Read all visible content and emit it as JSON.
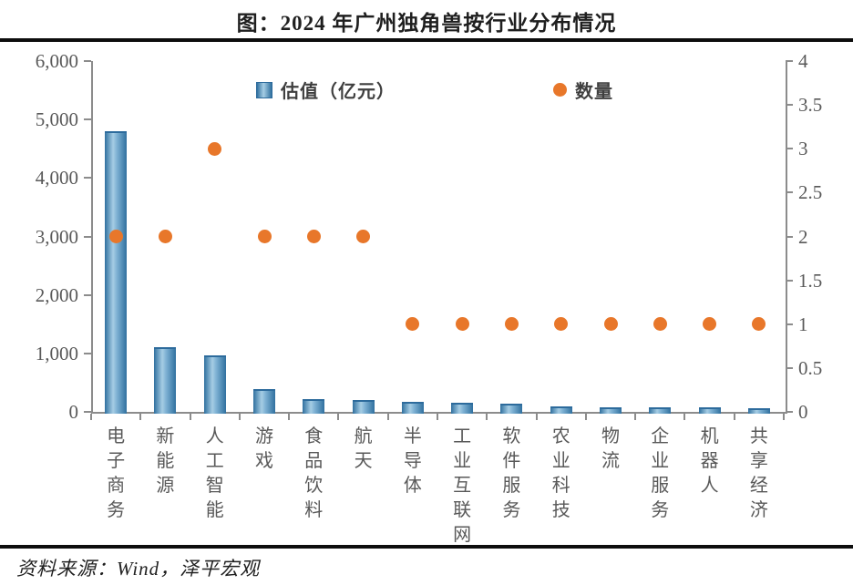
{
  "title": "图：2024 年广州独角兽按行业分布情况",
  "source": "资料来源：Wind，泽平宏观",
  "legend": {
    "bar_label": "估值（亿元）",
    "dot_label": "数量"
  },
  "colors": {
    "bar_fill_center": "#a6cde4",
    "bar_fill_edge": "#30709f",
    "dot_fill": "#e8772a",
    "axis_text": "#595959",
    "axis_line": "#8c8c8c",
    "divider": "#0d0d0d",
    "title_text": "#1f1f1f"
  },
  "chart_data": {
    "type": "bar",
    "subtype": "dual-axis bar + scatter",
    "title": "图：2024 年广州独角兽按行业分布情况",
    "categories": [
      "电子商务",
      "新能源",
      "人工智能",
      "游戏",
      "食品饮料",
      "航天",
      "半导体",
      "工业互联网",
      "软件服务",
      "农业科技",
      "物流",
      "企业服务",
      "机器人",
      "共享经济"
    ],
    "series": [
      {
        "name": "估值（亿元）",
        "type": "bar",
        "axis": "left",
        "values": [
          4800,
          1100,
          970,
          390,
          215,
          210,
          165,
          160,
          140,
          95,
          85,
          80,
          75,
          70
        ]
      },
      {
        "name": "数量",
        "type": "scatter",
        "axis": "right",
        "values": [
          2,
          2,
          3,
          2,
          2,
          2,
          1,
          1,
          1,
          1,
          1,
          1,
          1,
          1
        ]
      }
    ],
    "left_axis": {
      "min": 0,
      "max": 6000,
      "tick_step": 1000,
      "tick_labels": [
        "0",
        "1,000",
        "2,000",
        "3,000",
        "4,000",
        "5,000",
        "6,000"
      ]
    },
    "right_axis": {
      "min": 0,
      "max": 4,
      "tick_step": 0.5,
      "tick_labels": [
        "0",
        "0.5",
        "1",
        "1.5",
        "2",
        "2.5",
        "3",
        "3.5",
        "4"
      ]
    },
    "grid": false,
    "legend_position": "top-inside"
  }
}
